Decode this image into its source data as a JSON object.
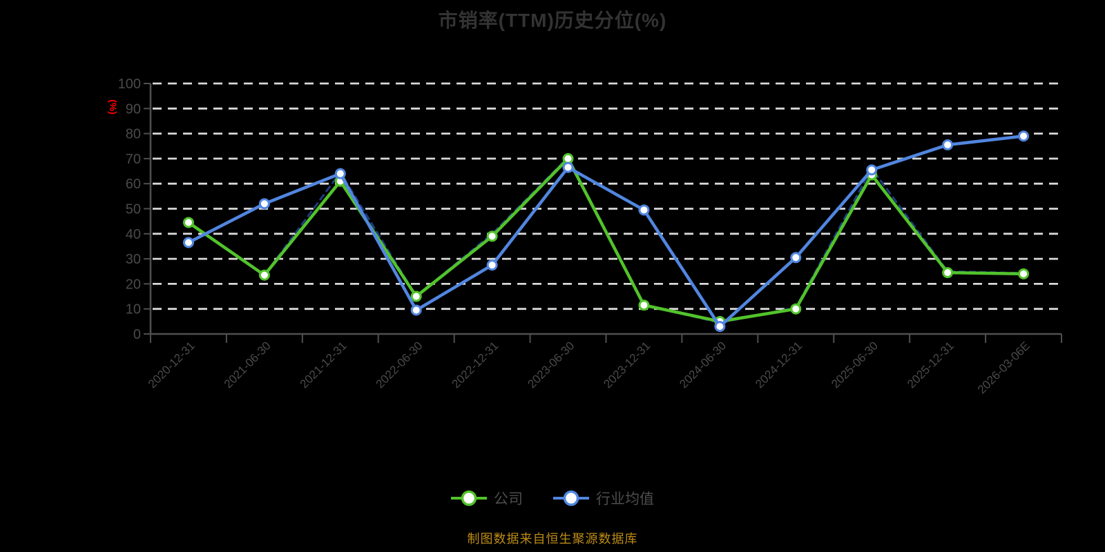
{
  "title": {
    "text": "市销率(TTM)历史分位(%)",
    "color": "#333333"
  },
  "y_axis_unit": {
    "text": "(%)",
    "color": "#ff0000"
  },
  "source_note": {
    "text": "制图数据来自恒生聚源数据库",
    "color": "#bd8c15"
  },
  "legend": {
    "position": "bottom",
    "items": [
      {
        "label": "公司",
        "color": "#52c32b"
      },
      {
        "label": "行业均值",
        "color": "#5186e0"
      }
    ]
  },
  "axis_style": {
    "axis_color": "#4f4f4f",
    "label_color": "#4a4a4a",
    "grid_color": "#d9d9d9",
    "background": "#000000"
  },
  "chart_data": {
    "type": "line",
    "title": "市销率(TTM)历史分位(%)",
    "ylabel": "(%)",
    "ylim": [
      0,
      100
    ],
    "ytick_step": 10,
    "grid": "horizontal-dashed-white",
    "legend_position": "bottom",
    "categories": [
      "2020-12-31",
      "2021-06-30",
      "2021-12-31",
      "2022-06-30",
      "2022-12-31",
      "2023-06-30",
      "2023-12-31",
      "2024-06-30",
      "2024-12-31",
      "2025-06-30",
      "2025-12-31",
      "2026-03-06E"
    ],
    "series": [
      {
        "name": "公司",
        "color": "#52c32b",
        "style": "solid",
        "markers": true,
        "z": 1,
        "values": [
          44.5,
          23.5,
          61,
          15,
          39,
          70,
          11.5,
          5,
          10,
          63.5,
          24.5,
          24
        ]
      },
      {
        "name": "行业均值",
        "color": "#5186e0",
        "style": "solid",
        "markers": true,
        "z": 2,
        "values": [
          36.5,
          52,
          64,
          9.5,
          27.5,
          66.5,
          49.5,
          3,
          30.5,
          65.5,
          75.5,
          79
        ]
      },
      {
        "name": "dashed_underlay_partially_hidden",
        "color": "#1e3c82",
        "style": "dashed",
        "markers": false,
        "z": 0,
        "values": [
          44.5,
          23.5,
          64.5,
          15,
          40,
          70.5,
          11.5,
          4.5,
          10.5,
          66,
          25,
          24.3
        ]
      }
    ]
  }
}
